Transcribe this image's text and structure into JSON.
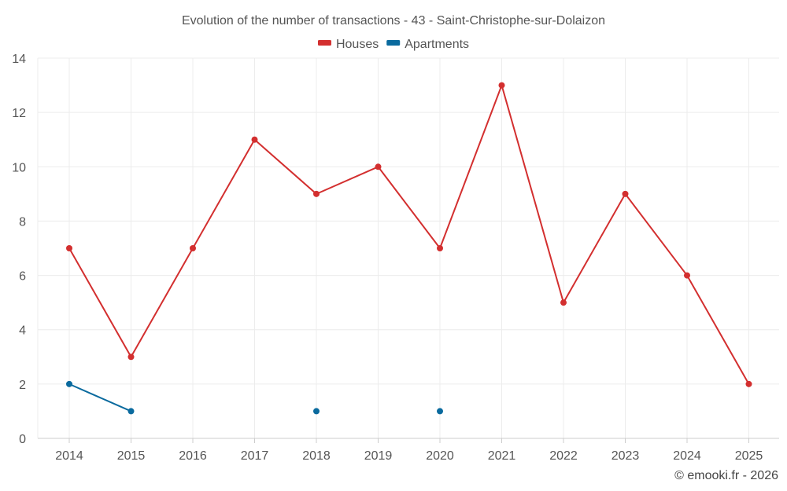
{
  "chart_data": {
    "type": "line",
    "title": "Evolution of the number of transactions - 43 - Saint-Christophe-sur-Dolaizon",
    "categories": [
      "2014",
      "2015",
      "2016",
      "2017",
      "2018",
      "2019",
      "2020",
      "2021",
      "2022",
      "2023",
      "2024",
      "2025"
    ],
    "ylim": [
      0,
      14
    ],
    "yticks": [
      0,
      2,
      4,
      6,
      8,
      10,
      12,
      14
    ],
    "grid": true,
    "legend_position": "top-center",
    "xlabel": "",
    "ylabel": "",
    "series": [
      {
        "name": "Houses",
        "color": "#d32f2f",
        "values": [
          7,
          3,
          7,
          11,
          9,
          10,
          7,
          13,
          5,
          9,
          6,
          2
        ]
      },
      {
        "name": "Apartments",
        "color": "#0a6a9e",
        "values": [
          2,
          1,
          null,
          null,
          1,
          null,
          1,
          null,
          null,
          null,
          null,
          null
        ]
      }
    ],
    "credit": "© emooki.fr - 2026"
  }
}
